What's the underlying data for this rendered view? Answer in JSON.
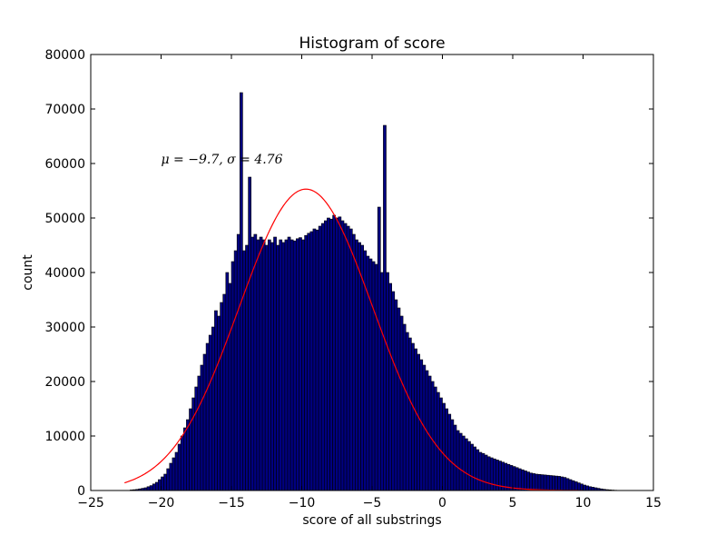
{
  "chart_data": {
    "type": "bar",
    "title": "Histogram of score",
    "xlabel": "score of all substrings",
    "ylabel": "count",
    "xlim": [
      -25,
      15
    ],
    "ylim": [
      0,
      80000
    ],
    "xticks": [
      -25,
      -20,
      -15,
      -10,
      -5,
      0,
      5,
      10,
      15
    ],
    "yticks": [
      0,
      10000,
      20000,
      30000,
      40000,
      50000,
      60000,
      70000,
      80000
    ],
    "annotation": "μ = −9.7, σ = 4.76",
    "fit": {
      "mu": -9.7,
      "sigma": 4.76,
      "peak": 55300,
      "x_start": -22.6,
      "x_end": 10,
      "color": "#ff0000"
    },
    "bar_color": "#000080",
    "bar_edge_color": "#000000",
    "bin_start": -22.2,
    "bin_width": 0.2,
    "values": [
      100,
      150,
      200,
      300,
      400,
      500,
      700,
      900,
      1200,
      1500,
      2000,
      2500,
      3000,
      4000,
      5000,
      6000,
      7000,
      8500,
      10000,
      11500,
      13000,
      15000,
      17000,
      19000,
      21000,
      23000,
      25000,
      27000,
      28500,
      30000,
      33000,
      32000,
      34500,
      36000,
      40000,
      38000,
      42000,
      44000,
      47000,
      73000,
      44000,
      45000,
      57500,
      46500,
      47000,
      46000,
      46500,
      46000,
      45000,
      46000,
      45500,
      46500,
      45000,
      46000,
      45500,
      46000,
      46500,
      46000,
      45800,
      46200,
      46400,
      46000,
      46800,
      47200,
      47500,
      48000,
      47800,
      48500,
      49000,
      49500,
      50000,
      49800,
      50500,
      50000,
      50200,
      49500,
      49000,
      48500,
      48000,
      47000,
      46000,
      45500,
      45000,
      44000,
      43000,
      42500,
      42000,
      41500,
      52000,
      40000,
      67000,
      40000,
      38000,
      36500,
      35000,
      33500,
      32000,
      30500,
      29000,
      28000,
      27000,
      26000,
      25000,
      24000,
      23000,
      22000,
      21000,
      20000,
      19000,
      18000,
      17000,
      16000,
      15000,
      14000,
      13000,
      12000,
      11000,
      10500,
      10000,
      9500,
      9000,
      8500,
      8000,
      7500,
      7000,
      6800,
      6500,
      6200,
      6000,
      5800,
      5600,
      5400,
      5200,
      5000,
      4800,
      4600,
      4400,
      4200,
      4000,
      3800,
      3600,
      3400,
      3200,
      3100,
      3000,
      2950,
      2900,
      2850,
      2800,
      2750,
      2700,
      2650,
      2600,
      2500,
      2400,
      2200,
      2000,
      1800,
      1600,
      1400,
      1200,
      1000,
      850,
      700,
      600,
      500,
      400,
      300,
      220,
      160,
      120,
      80,
      50,
      30,
      20,
      10
    ]
  }
}
